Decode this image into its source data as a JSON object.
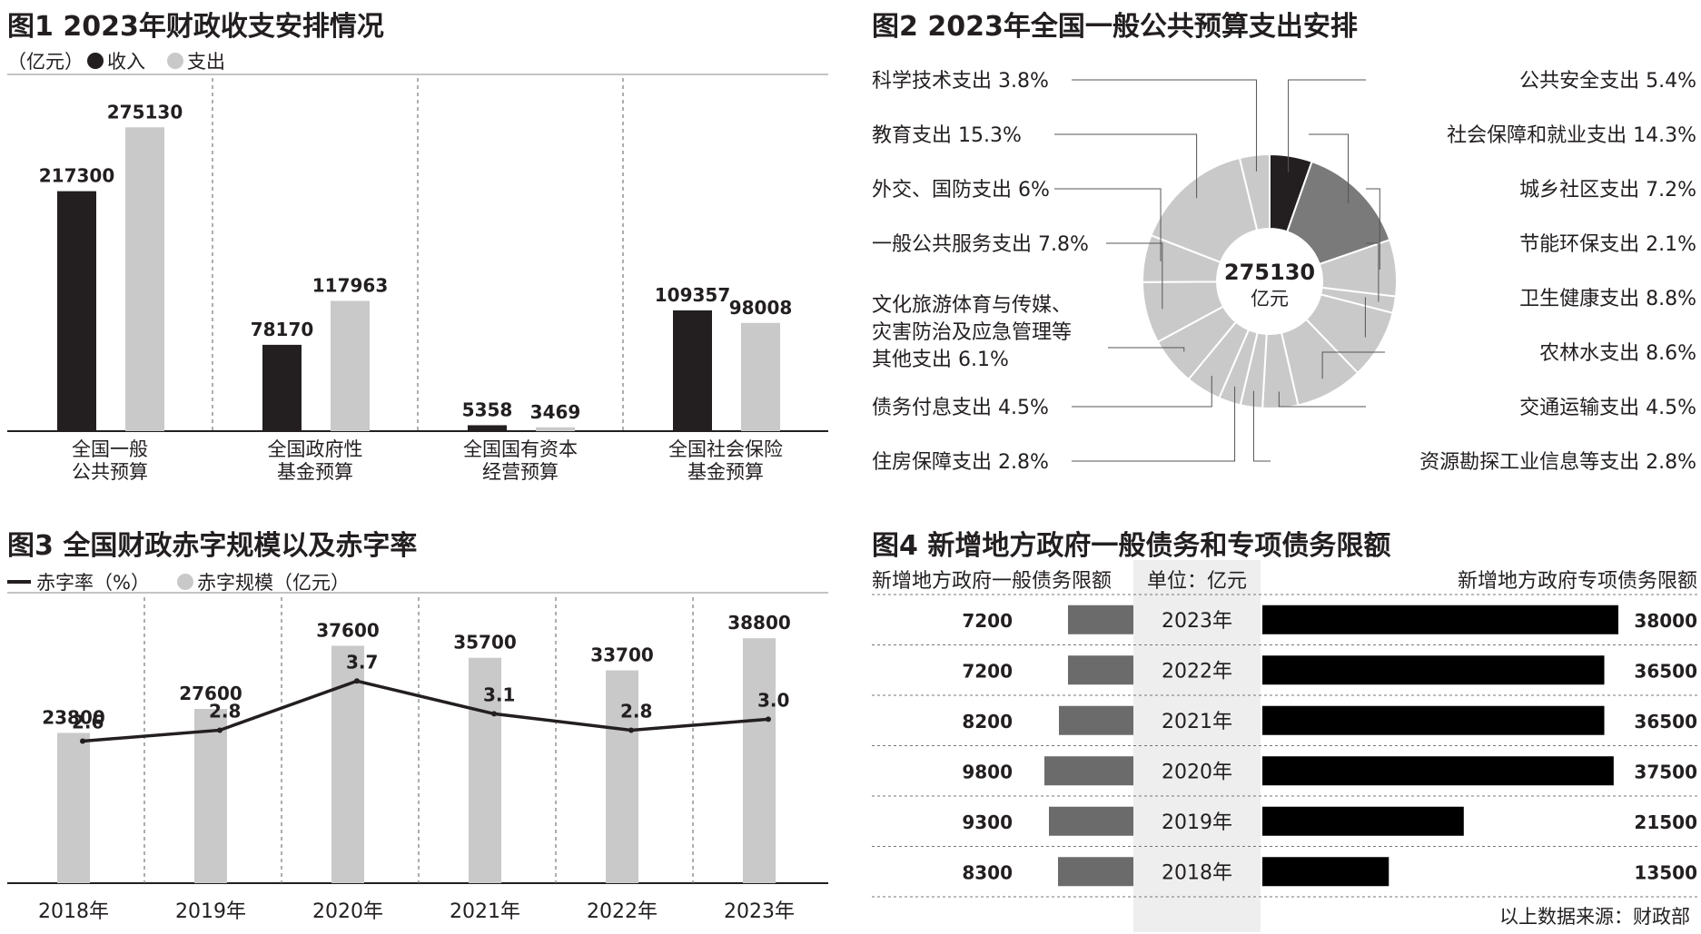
{
  "figure1": {
    "title": "图1 2023年财政收支安排情况",
    "unit_label": "（亿元）",
    "legend": [
      {
        "name": "收入",
        "color": "#231f20"
      },
      {
        "name": "支出",
        "color": "#c9c9c9"
      }
    ],
    "chart_data": {
      "type": "bar",
      "title": "图1 2023年财政收支安排情况",
      "ylabel": "亿元",
      "ylim": [
        0,
        300000
      ],
      "categories": [
        [
          "全国一般",
          "公共预算"
        ],
        [
          "全国政府性",
          "基金预算"
        ],
        [
          "全国国有资本",
          "经营预算"
        ],
        [
          "全国社会保险",
          "基金预算"
        ]
      ],
      "series": [
        {
          "name": "收入",
          "values": [
            217300,
            78170,
            5358,
            109357
          ],
          "labels": [
            "217300",
            "78170",
            "5358",
            "109357"
          ]
        },
        {
          "name": "支出",
          "values": [
            275130,
            117963,
            3469,
            98008
          ],
          "labels": [
            "275130",
            "117963",
            "3469",
            "98008"
          ]
        }
      ]
    }
  },
  "figure2": {
    "title": "图2 2023年全国一般公共预算支出安排",
    "center_value": "275130",
    "center_unit": "亿元",
    "chart_data": {
      "type": "pie",
      "title": "图2 2023年全国一般公共预算支出安排",
      "total": 275130,
      "slices": [
        {
          "name": "公共安全支出",
          "value": 5.4,
          "label": "5.4%",
          "color": "#231f20"
        },
        {
          "name": "社会保障和就业支出",
          "value": 14.3,
          "label": "14.3%",
          "color": "#7a7a7a"
        },
        {
          "name": "城乡社区支出",
          "value": 7.2,
          "label": "7.2%",
          "color": "#c9c9c9"
        },
        {
          "name": "节能环保支出",
          "value": 2.1,
          "label": "2.1%",
          "color": "#c9c9c9"
        },
        {
          "name": "卫生健康支出",
          "value": 8.8,
          "label": "8.8%",
          "color": "#c9c9c9"
        },
        {
          "name": "农林水支出",
          "value": 8.6,
          "label": "8.6%",
          "color": "#c9c9c9"
        },
        {
          "name": "交通运输支出",
          "value": 4.5,
          "label": "4.5%",
          "color": "#c9c9c9"
        },
        {
          "name": "资源勘探工业信息等支出",
          "value": 2.8,
          "label": "2.8%",
          "color": "#c9c9c9"
        },
        {
          "name": "住房保障支出",
          "value": 2.8,
          "label": "2.8%",
          "color": "#c9c9c9"
        },
        {
          "name": "债务付息支出",
          "value": 4.5,
          "label": "4.5%",
          "color": "#c9c9c9"
        },
        {
          "name": "文化旅游体育与传媒、灾害防治及应急管理等其他支出",
          "display": [
            "文化旅游体育与传媒、",
            "灾害防治及应急管理等",
            "其他支出"
          ],
          "value": 6.1,
          "label": "6.1%",
          "color": "#c9c9c9"
        },
        {
          "name": "一般公共服务支出",
          "value": 7.8,
          "label": "7.8%",
          "color": "#c9c9c9"
        },
        {
          "name": "外交、国防支出",
          "value": 6,
          "label": "6%",
          "color": "#c9c9c9"
        },
        {
          "name": "教育支出",
          "value": 15.3,
          "label": "15.3%",
          "color": "#c9c9c9"
        },
        {
          "name": "科学技术支出",
          "value": 3.8,
          "label": "3.8%",
          "color": "#c9c9c9"
        }
      ]
    }
  },
  "figure3": {
    "title": "图3 全国财政赤字规模以及赤字率",
    "legend": [
      {
        "name": "赤字率（%）",
        "kind": "line",
        "color": "#231f20"
      },
      {
        "name": "赤字规模（亿元）",
        "kind": "bar",
        "color": "#c9c9c9"
      }
    ],
    "chart_data": {
      "type": "bar",
      "title": "图3 全国财政赤字规模以及赤字率",
      "categories": [
        "2018年",
        "2019年",
        "2020年",
        "2021年",
        "2022年",
        "2023年"
      ],
      "series": [
        {
          "name": "赤字规模（亿元）",
          "type": "bar",
          "values": [
            23800,
            27600,
            37600,
            35700,
            33700,
            38800
          ],
          "labels": [
            "23800",
            "27600",
            "37600",
            "35700",
            "33700",
            "38800"
          ],
          "ylim": [
            0,
            45000
          ]
        },
        {
          "name": "赤字率（%）",
          "type": "line",
          "values": [
            2.6,
            2.8,
            3.7,
            3.1,
            2.8,
            3.0
          ],
          "labels": [
            "2.6",
            "2.8",
            "3.7",
            "3.1",
            "2.8",
            "3.0"
          ],
          "ylim": [
            0,
            5.2
          ]
        }
      ]
    }
  },
  "figure4": {
    "title": "图4 新增地方政府一般债务和专项债务限额",
    "left_header": "新增地方政府一般债务限额",
    "unit_header": "单位：亿元",
    "right_header": "新增地方政府专项债务限额",
    "chart_data": {
      "type": "bar",
      "title": "图4 新增地方政府一般债务和专项债务限额",
      "unit": "亿元",
      "categories": [
        "2023年",
        "2022年",
        "2021年",
        "2020年",
        "2019年",
        "2018年"
      ],
      "series": [
        {
          "name": "新增地方政府一般债务限额",
          "values": [
            7200,
            7200,
            8200,
            9800,
            9300,
            8300
          ],
          "labels": [
            "7200",
            "7200",
            "8200",
            "9800",
            "9300",
            "8300"
          ],
          "color": "#6b6b6b"
        },
        {
          "name": "新增地方政府专项债务限额",
          "values": [
            38000,
            36500,
            36500,
            37500,
            21500,
            13500
          ],
          "labels": [
            "38000",
            "36500",
            "36500",
            "37500",
            "21500",
            "13500"
          ],
          "color": "#000000"
        }
      ]
    }
  },
  "source_note": "以上数据来源：财政部"
}
